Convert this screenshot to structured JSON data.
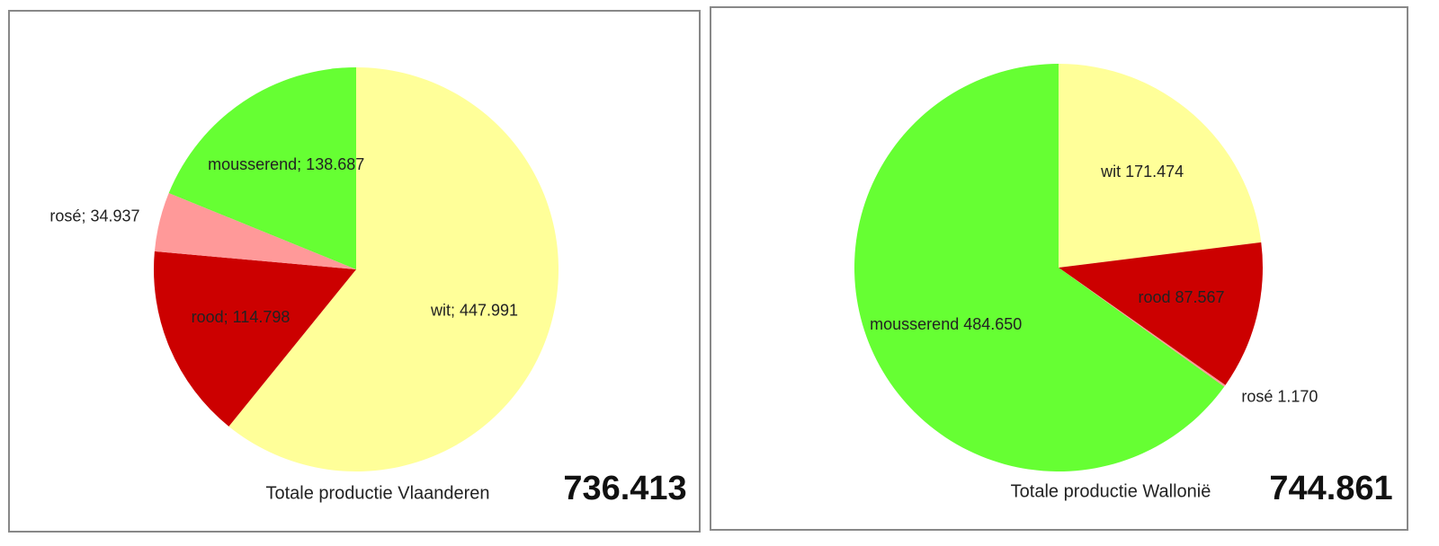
{
  "chart_data": [
    {
      "type": "pie",
      "title": "Totale productie Vlaanderen",
      "total": {
        "value": 736413,
        "label": "736.413"
      },
      "categories": [
        "wit",
        "rood",
        "rosé",
        "mousserend"
      ],
      "values": [
        447991,
        114798,
        34937,
        138687
      ],
      "value_labels": [
        "wit; 447.991",
        "rood; 114.798",
        "rosé; 34.937",
        "mousserend; 138.687"
      ],
      "colors": [
        "#ffff99",
        "#cc0000",
        "#ff9999",
        "#66ff33"
      ]
    },
    {
      "type": "pie",
      "title": "Totale productie Wallonië",
      "total": {
        "value": 744861,
        "label": "744.861"
      },
      "categories": [
        "wit",
        "rood",
        "rosé",
        "mousserend"
      ],
      "values": [
        171474,
        87567,
        1170,
        484650
      ],
      "value_labels": [
        "wit 171.474",
        "rood 87.567",
        "rosé 1.170",
        "mousserend 484.650"
      ],
      "colors": [
        "#ffff99",
        "#cc0000",
        "#ff9999",
        "#66ff33"
      ]
    }
  ]
}
